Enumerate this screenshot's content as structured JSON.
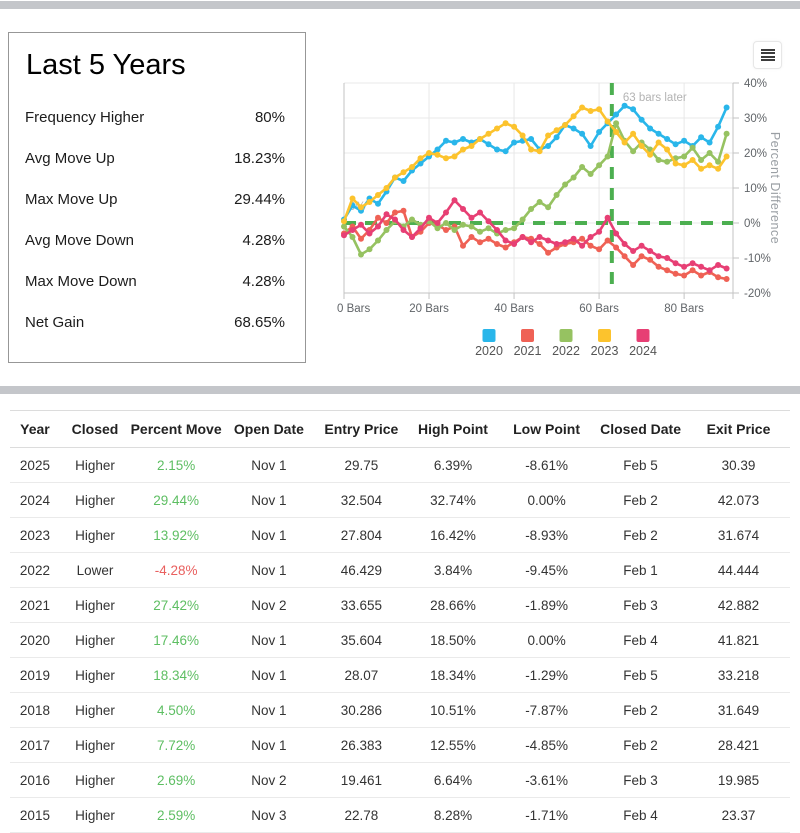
{
  "stats_panel": {
    "title": "Last 5 Years",
    "rows": [
      {
        "label": "Frequency Higher",
        "value": "80%"
      },
      {
        "label": "Avg Move Up",
        "value": "18.23%"
      },
      {
        "label": "Max Move Up",
        "value": "29.44%"
      },
      {
        "label": "Avg Move Down",
        "value": "4.28%"
      },
      {
        "label": "Max Move Down",
        "value": "4.28%"
      },
      {
        "label": "Net Gain",
        "value": "68.65%"
      }
    ]
  },
  "chart_data": {
    "type": "line",
    "title": "",
    "xlabel": "Bars",
    "ylabel": "Percent Difference",
    "xlim": [
      0,
      91.5
    ],
    "ylim": [
      -20,
      40
    ],
    "grid": true,
    "legend_position": "bottom",
    "x_tick_bars": [
      0,
      20,
      40,
      60,
      80
    ],
    "x_tick_labels": [
      "0 Bars",
      "20 Bars",
      "40 Bars",
      "60 Bars",
      "80 Bars"
    ],
    "y_tick_values": [
      40,
      30,
      20,
      10,
      0,
      -10,
      -20
    ],
    "y_tick_labels": [
      "40%",
      "30%",
      "20%",
      "10%",
      "0%",
      "-10%",
      "-20%"
    ],
    "crosshair": {
      "bar": 63,
      "value_pct": 0,
      "label": "63 bars later",
      "zero_label": "0%",
      "color": "#4caf50"
    },
    "x_start": 0,
    "x_step": 2,
    "series": [
      {
        "name": "2020",
        "color": "#29b6ea",
        "values": [
          1,
          5,
          3.5,
          7,
          5.5,
          9,
          13,
          12,
          15,
          17,
          19,
          21,
          23.5,
          23,
          24,
          23,
          24,
          22.5,
          21,
          20.5,
          23,
          23.5,
          24,
          21,
          22,
          24.5,
          28,
          27,
          25.5,
          22,
          26,
          28.5,
          31,
          33.5,
          32.5,
          29.5,
          27,
          25.5,
          24,
          22.5,
          23.5,
          22,
          24.5,
          23,
          27.5,
          33
        ]
      },
      {
        "name": "2021",
        "color": "#ef6155",
        "values": [
          -3,
          -1,
          -4.5,
          -2,
          1.5,
          0,
          3,
          3.5,
          -4,
          -2.5,
          0,
          -0.5,
          -2,
          -1,
          -6.5,
          -4,
          -5.5,
          -4.5,
          -6,
          -7,
          -5.5,
          -4,
          -4.5,
          -6,
          -8.5,
          -7,
          -6,
          -5.5,
          -4.5,
          -6.5,
          -7.5,
          -5,
          -7,
          -9.5,
          -12,
          -9.5,
          -10.5,
          -12.5,
          -13.5,
          -14.5,
          -15,
          -13.5,
          -15,
          -14,
          -15.5,
          -16
        ]
      },
      {
        "name": "2022",
        "color": "#96c261",
        "values": [
          -1,
          -4,
          -9,
          -7.5,
          -5,
          -2,
          0.5,
          -1,
          1,
          -0.5,
          0.5,
          -1.5,
          0,
          -2,
          -0.5,
          -1,
          -2.5,
          -1.5,
          -3,
          -2,
          -1.5,
          1,
          4,
          6,
          4.5,
          8,
          11,
          13,
          16,
          14,
          16.5,
          19,
          28.5,
          23.5,
          20.5,
          23,
          21,
          18,
          17.5,
          18.5,
          19,
          21.5,
          18,
          20,
          17.5,
          25.5
        ]
      },
      {
        "name": "2023",
        "color": "#fcc32d",
        "values": [
          0.5,
          7,
          4.5,
          6,
          8,
          10,
          13,
          14.5,
          16,
          18.5,
          20,
          19.5,
          18.5,
          19,
          21,
          22,
          24,
          25.5,
          27,
          28.5,
          27.5,
          25,
          21,
          20.5,
          25,
          26.5,
          28,
          30.5,
          33,
          32,
          32.5,
          29,
          26,
          23,
          25.5,
          22,
          19.5,
          23,
          21,
          17,
          16.5,
          18,
          15.5,
          16.5,
          15.5,
          19
        ]
      },
      {
        "name": "2024",
        "color": "#e73f74",
        "values": [
          -3.5,
          -2,
          -0.5,
          -3,
          -1,
          2.5,
          1,
          -2,
          -4,
          -1.5,
          1.5,
          0,
          3,
          6.5,
          4,
          1.5,
          3,
          0.5,
          -2,
          -5,
          -6,
          -4,
          -5.5,
          -4,
          -5,
          -6,
          -5.5,
          -4.5,
          -6.5,
          -4,
          -2.5,
          1.5,
          -3,
          -6,
          -8,
          -6.5,
          -8,
          -9.5,
          -10,
          -11.5,
          -12.5,
          -11.5,
          -12.5,
          -13.5,
          -12,
          -13
        ]
      }
    ]
  },
  "table": {
    "positive_color": "#5dbe62",
    "negative_color": "#e9605f",
    "columns": [
      "Year",
      "Closed",
      "Percent Move",
      "Open Date",
      "Entry Price",
      "High Point",
      "Low Point",
      "Closed Date",
      "Exit Price"
    ],
    "rows": [
      [
        "2025",
        "Higher",
        "2.15%",
        "Nov 1",
        "29.75",
        "6.39%",
        "-8.61%",
        "Feb 5",
        "30.39"
      ],
      [
        "2024",
        "Higher",
        "29.44%",
        "Nov 1",
        "32.504",
        "32.74%",
        "0.00%",
        "Feb 2",
        "42.073"
      ],
      [
        "2023",
        "Higher",
        "13.92%",
        "Nov 1",
        "27.804",
        "16.42%",
        "-8.93%",
        "Feb 2",
        "31.674"
      ],
      [
        "2022",
        "Lower",
        "-4.28%",
        "Nov 1",
        "46.429",
        "3.84%",
        "-9.45%",
        "Feb 1",
        "44.444"
      ],
      [
        "2021",
        "Higher",
        "27.42%",
        "Nov 2",
        "33.655",
        "28.66%",
        "-1.89%",
        "Feb 3",
        "42.882"
      ],
      [
        "2020",
        "Higher",
        "17.46%",
        "Nov 1",
        "35.604",
        "18.50%",
        "0.00%",
        "Feb 4",
        "41.821"
      ],
      [
        "2019",
        "Higher",
        "18.34%",
        "Nov 1",
        "28.07",
        "18.34%",
        "-1.29%",
        "Feb 5",
        "33.218"
      ],
      [
        "2018",
        "Higher",
        "4.50%",
        "Nov 1",
        "30.286",
        "10.51%",
        "-7.87%",
        "Feb 2",
        "31.649"
      ],
      [
        "2017",
        "Higher",
        "7.72%",
        "Nov 1",
        "26.383",
        "12.55%",
        "-4.85%",
        "Feb 2",
        "28.421"
      ],
      [
        "2016",
        "Higher",
        "2.69%",
        "Nov 2",
        "19.461",
        "6.64%",
        "-3.61%",
        "Feb 3",
        "19.985"
      ],
      [
        "2015",
        "Higher",
        "2.59%",
        "Nov 3",
        "22.78",
        "8.28%",
        "-1.71%",
        "Feb 4",
        "23.37"
      ]
    ]
  }
}
